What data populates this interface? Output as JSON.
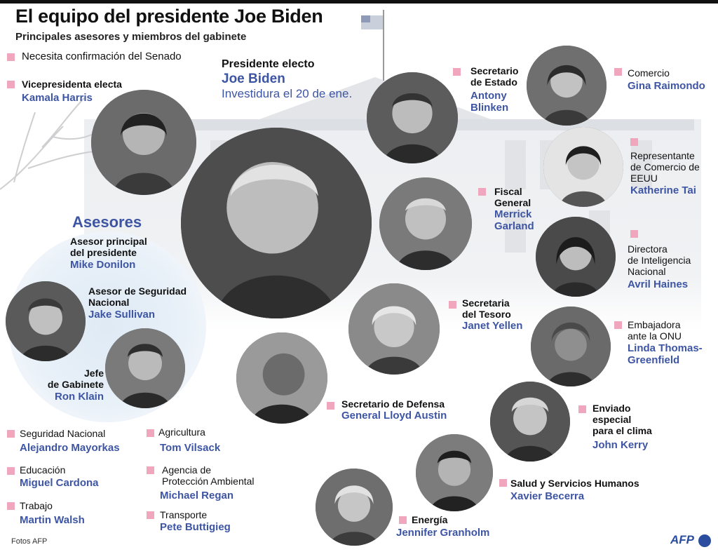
{
  "header": {
    "title": "El equipo del presidente Joe Biden",
    "subtitle": "Principales asesores y miembros del gabinete"
  },
  "legend": {
    "label": "Necesita confirmación del Senado",
    "marker_color": "#f0a6bd"
  },
  "president": {
    "role": "Presidente electo",
    "name": "Joe Biden",
    "note": "Investidura el 20 de ene."
  },
  "vp": {
    "role": "Vicepresidenta electa",
    "name": "Kamala Harris"
  },
  "advisors": {
    "heading": "Asesores",
    "donilon": {
      "role_1": "Asesor principal",
      "role_2": "del presidente",
      "name": "Mike Donilon"
    },
    "sullivan": {
      "role_1": "Asesor de Seguridad",
      "role_2": "Nacional",
      "name": "Jake Sullivan"
    },
    "klain": {
      "role_1": "Jefe",
      "role_2": "de Gabinete",
      "name": "Ron Klain"
    }
  },
  "cabinet": {
    "blinken": {
      "role_1": "Secretario",
      "role_2": "de Estado",
      "name_1": "Antony",
      "name_2": "Blinken"
    },
    "raimondo": {
      "role": "Comercio",
      "name": "Gina Raimondo"
    },
    "tai": {
      "role_1": "Representante",
      "role_2": "de Comercio de",
      "role_3": "EEUU",
      "name": "Katherine Tai"
    },
    "garland": {
      "role_1": "Fiscal",
      "role_2": "General",
      "name_1": "Merrick",
      "name_2": "Garland"
    },
    "haines": {
      "role_1": "Directora",
      "role_2": "de Inteligencia",
      "role_3": "Nacional",
      "name": "Avril Haines"
    },
    "yellen": {
      "role_1": "Secretaria",
      "role_2": "del Tesoro",
      "name": "Janet Yellen"
    },
    "thomas": {
      "role_1": "Embajadora",
      "role_2": "ante la ONU",
      "name_1": "Linda Thomas-",
      "name_2": "Greenfield"
    },
    "austin": {
      "role": "Secretario de Defensa",
      "name": "General Lloyd Austin"
    },
    "kerry": {
      "role_1": "Enviado",
      "role_2": "especial",
      "role_3": "para el clima",
      "name": "John Kerry"
    },
    "becerra": {
      "role": "Salud y Servicios Humanos",
      "name": "Xavier Becerra"
    },
    "granholm": {
      "role": "Energía",
      "name": "Jennifer Granholm"
    },
    "mayorkas": {
      "role": "Seguridad Nacional",
      "name": "Alejandro Mayorkas"
    },
    "cardona": {
      "role": "Educación",
      "name": "Miguel Cardona"
    },
    "walsh": {
      "role": "Trabajo",
      "name": "Martin Walsh"
    },
    "vilsack": {
      "role": "Agricultura",
      "name": "Tom Vilsack"
    },
    "regan": {
      "role_1": "Agencia de",
      "role_2": "Protección Ambiental",
      "name": "Michael Regan"
    },
    "buttigieg": {
      "role": "Transporte",
      "name": "Pete Buttigieg"
    }
  },
  "footer": {
    "credit": "Fotos AFP",
    "logo": "AFP"
  },
  "colors": {
    "name_blue": "#3d55a3",
    "marker_pink": "#f0a6bd"
  }
}
